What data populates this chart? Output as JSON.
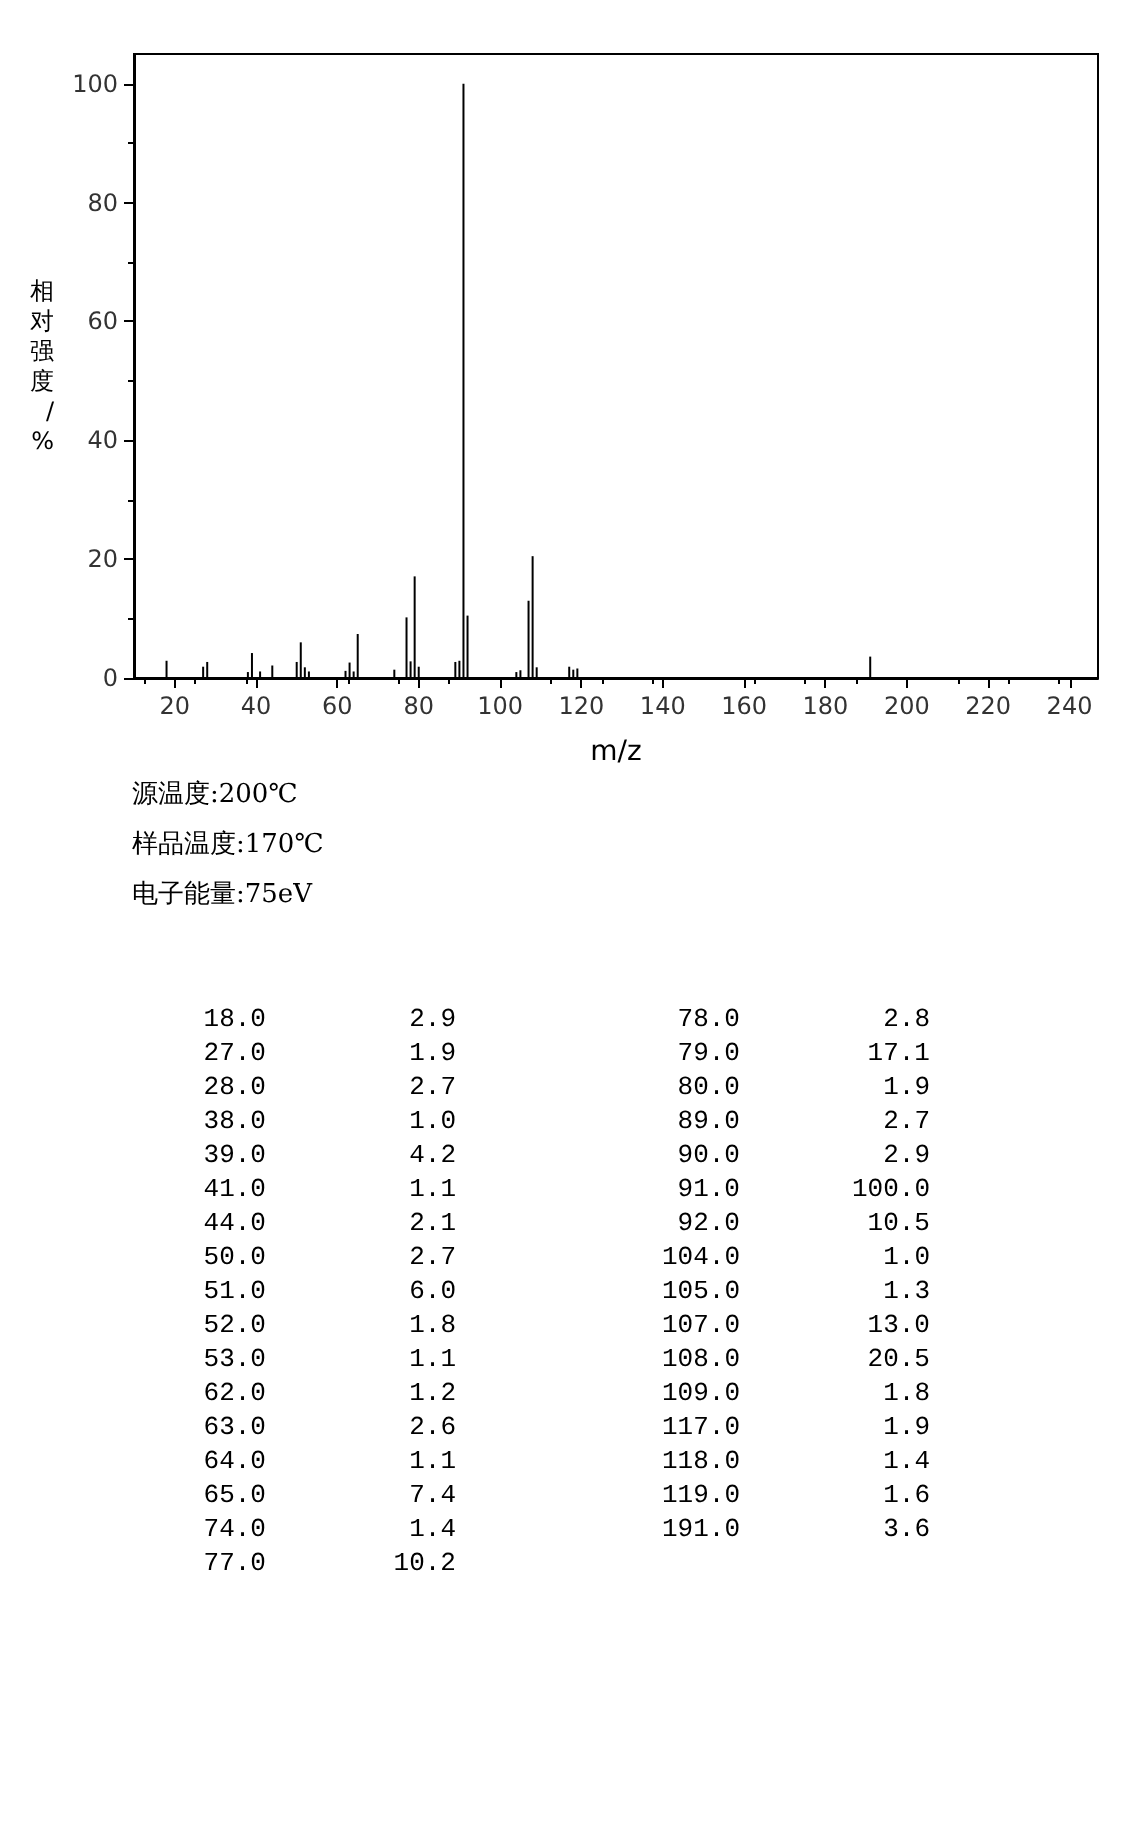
{
  "chart_data": [
    {
      "type": "bar",
      "xlabel": "m/z",
      "ylabel": "相对强度/%",
      "x": [
        18,
        27,
        28,
        38,
        39,
        41,
        44,
        50,
        51,
        52,
        53,
        62,
        63,
        64,
        65,
        74,
        77,
        78,
        79,
        80,
        89,
        90,
        91,
        92,
        104,
        105,
        107,
        108,
        109,
        117,
        118,
        119,
        191
      ],
      "values": [
        2.9,
        1.9,
        2.7,
        1.0,
        4.2,
        1.1,
        2.1,
        2.7,
        6.0,
        1.8,
        1.1,
        1.2,
        2.6,
        1.1,
        7.4,
        1.4,
        10.2,
        2.8,
        17.1,
        1.9,
        2.7,
        2.9,
        100.0,
        10.5,
        1.0,
        1.3,
        13.0,
        20.5,
        1.8,
        1.9,
        1.4,
        1.6,
        3.6
      ],
      "color": "#000000",
      "xlim": [
        10,
        247
      ],
      "xticks": [
        20,
        40,
        60,
        80,
        100,
        120,
        140,
        160,
        180,
        200,
        220,
        240
      ],
      "ylim": [
        0,
        105
      ],
      "yticks": [
        0,
        20,
        40,
        60,
        80,
        100
      ],
      "grid": false,
      "annotations": [
        "源温度:200℃",
        "样品温度:170℃",
        "电子能量:75eV"
      ]
    },
    {
      "type": "other",
      "annotations": [
        "18.0",
        "2.9",
        "27.0",
        "1.9",
        "28.0",
        "2.7",
        "38.0",
        "1.0",
        "39.0",
        "4.2",
        "41.0",
        "1.1",
        "44.0",
        "2.1",
        "50.0",
        "2.7",
        "51.0",
        "6.0",
        "52.0",
        "1.8",
        "53.0",
        "1.1",
        "62.0",
        "1.2",
        "63.0",
        "2.6",
        "64.0",
        "1.1",
        "65.0",
        "7.4",
        "74.0",
        "1.4",
        "77.0",
        "10.2",
        "78.0",
        "2.8",
        "79.0",
        "17.1",
        "80.0",
        "1.9",
        "89.0",
        "2.7",
        "90.0",
        "2.9",
        "91.0",
        "100.0",
        "92.0",
        "10.5",
        "104.0",
        "1.0",
        "105.0",
        "1.3",
        "107.0",
        "13.0",
        "108.0",
        "20.5",
        "109.0",
        "1.8",
        "117.0",
        "1.9",
        "118.0",
        "1.4",
        "119.0",
        "1.6",
        "191.0",
        "3.6"
      ]
    }
  ]
}
